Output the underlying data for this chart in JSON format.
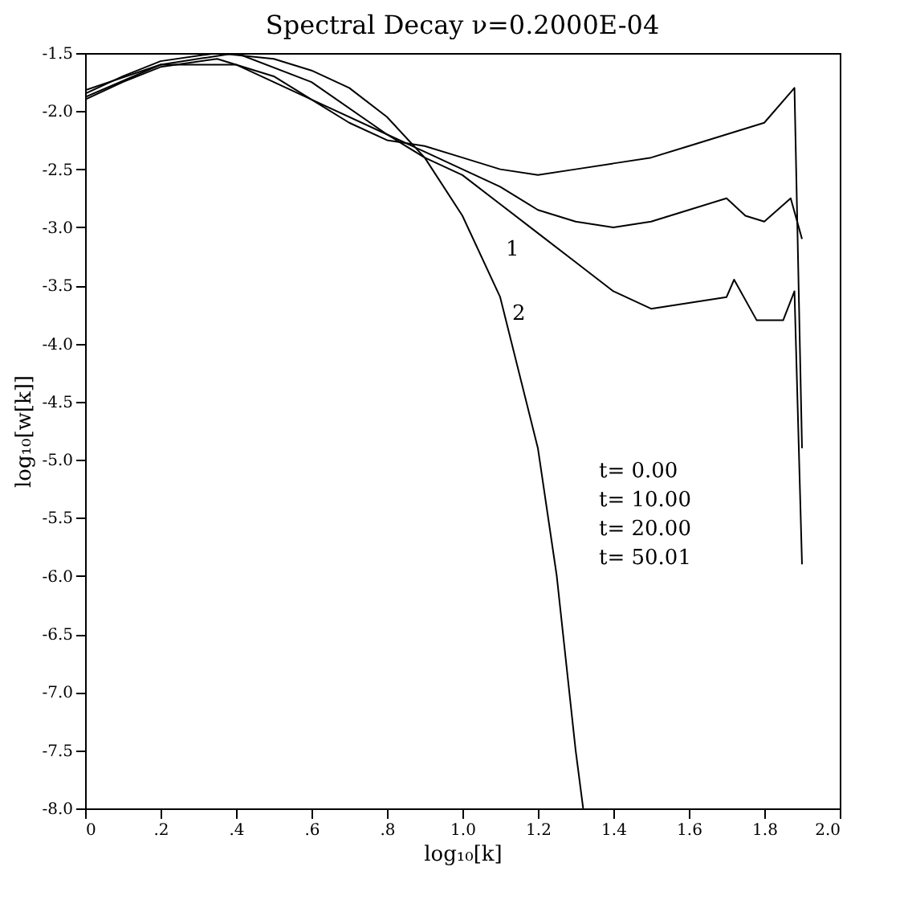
{
  "chart_data": {
    "type": "line",
    "title": "Spectral Decay  ν=0.2000E-04",
    "xlabel": "log₁₀[k]",
    "ylabel": "log₁₀[w[k]]",
    "xlim": [
      0,
      2.0
    ],
    "ylim": [
      -8.0,
      -1.5
    ],
    "xticks": [
      {
        "value": 0,
        "label": "0"
      },
      {
        "value": 0.2,
        "label": ".2"
      },
      {
        "value": 0.4,
        "label": ".4"
      },
      {
        "value": 0.6,
        "label": ".6"
      },
      {
        "value": 0.8,
        "label": ".8"
      },
      {
        "value": 1.0,
        "label": "1.0"
      },
      {
        "value": 1.2,
        "label": "1.2"
      },
      {
        "value": 1.4,
        "label": "1.4"
      },
      {
        "value": 1.6,
        "label": "1.6"
      },
      {
        "value": 1.8,
        "label": "1.8"
      },
      {
        "value": 2.0,
        "label": "2.0"
      }
    ],
    "yticks": [
      {
        "value": -1.5,
        "label": "-1.5"
      },
      {
        "value": -2.0,
        "label": "-2.0"
      },
      {
        "value": -2.5,
        "label": "-2.5"
      },
      {
        "value": -3.0,
        "label": "-3.0"
      },
      {
        "value": -3.5,
        "label": "-3.5"
      },
      {
        "value": -4.0,
        "label": "-4.0"
      },
      {
        "value": -4.5,
        "label": "-4.5"
      },
      {
        "value": -5.0,
        "label": "-5.0"
      },
      {
        "value": -5.5,
        "label": "-5.5"
      },
      {
        "value": -6.0,
        "label": "-6.0"
      },
      {
        "value": -6.5,
        "label": "-6.5"
      },
      {
        "value": -7.0,
        "label": "-7.0"
      },
      {
        "value": -7.5,
        "label": "-7.5"
      },
      {
        "value": -8.0,
        "label": "-8.0"
      }
    ],
    "grid": false,
    "legend": false,
    "line_style": "solid",
    "series": [
      {
        "color": "#000000",
        "x": [
          0,
          0.1,
          0.2,
          0.35,
          0.5,
          0.6,
          0.7,
          0.8,
          0.9,
          1.0,
          1.1,
          1.2,
          1.25,
          1.3,
          1.32
        ],
        "values": [
          -1.85,
          -1.7,
          -1.57,
          -1.5,
          -1.55,
          -1.65,
          -1.8,
          -2.05,
          -2.4,
          -2.9,
          -3.6,
          -4.9,
          -6.0,
          -7.5,
          -8.0
        ]
      },
      {
        "color": "#000000",
        "x": [
          0,
          0.1,
          0.2,
          0.35,
          0.5,
          0.6,
          0.7,
          0.8,
          0.9,
          1.0,
          1.1,
          1.2,
          1.3,
          1.4,
          1.5,
          1.6,
          1.7,
          1.8,
          1.88,
          1.9
        ],
        "values": [
          -1.9,
          -1.75,
          -1.62,
          -1.55,
          -1.7,
          -1.9,
          -2.1,
          -2.25,
          -2.3,
          -2.4,
          -2.5,
          -2.55,
          -2.5,
          -2.45,
          -2.4,
          -2.3,
          -2.2,
          -2.1,
          -1.8,
          -4.9
        ]
      },
      {
        "color": "#000000",
        "x": [
          0,
          0.2,
          0.4,
          0.6,
          0.8,
          0.9,
          1.0,
          1.1,
          1.2,
          1.3,
          1.4,
          1.5,
          1.6,
          1.7,
          1.75,
          1.8,
          1.87,
          1.9
        ],
        "values": [
          -1.88,
          -1.6,
          -1.5,
          -1.75,
          -2.2,
          -2.35,
          -2.5,
          -2.65,
          -2.85,
          -2.95,
          -3.0,
          -2.95,
          -2.85,
          -2.75,
          -2.9,
          -2.95,
          -2.75,
          -3.1
        ]
      },
      {
        "color": "#000000",
        "x": [
          0,
          0.2,
          0.4,
          0.6,
          0.8,
          0.9,
          1.0,
          1.1,
          1.2,
          1.3,
          1.4,
          1.5,
          1.6,
          1.7,
          1.72,
          1.78,
          1.85,
          1.88,
          1.9
        ],
        "values": [
          -1.82,
          -1.6,
          -1.6,
          -1.9,
          -2.2,
          -2.4,
          -2.55,
          -2.8,
          -3.05,
          -3.3,
          -3.55,
          -3.7,
          -3.65,
          -3.6,
          -3.45,
          -3.8,
          -3.8,
          -3.55,
          -5.9
        ]
      }
    ],
    "annotations": [
      "t=  0.00",
      "t= 10.00",
      "t= 20.00",
      "t= 50.01",
      "1",
      "2"
    ]
  }
}
